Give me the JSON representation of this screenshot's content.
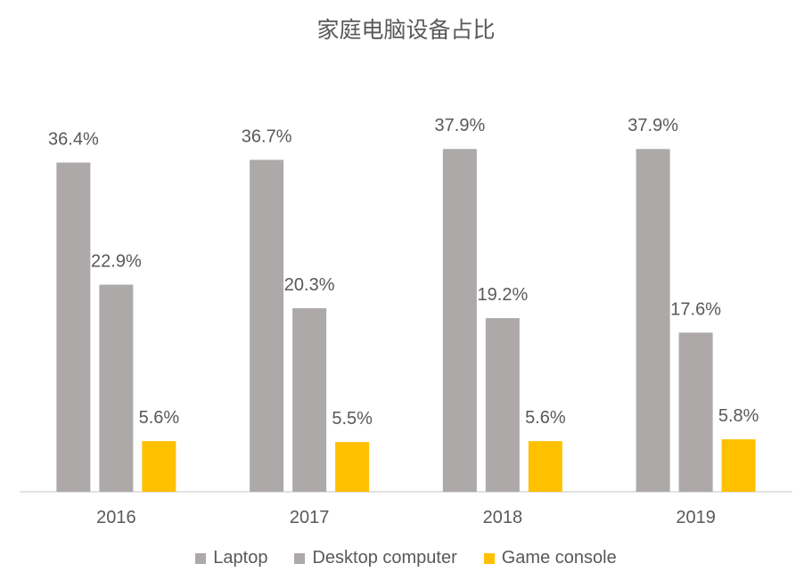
{
  "chart_data": {
    "type": "bar",
    "title": "家庭电脑设备占比",
    "xlabel": "",
    "ylabel": "",
    "categories": [
      "2016",
      "2017",
      "2018",
      "2019"
    ],
    "series": [
      {
        "name": "Laptop",
        "values": [
          36.4,
          36.7,
          37.9,
          37.9
        ],
        "labels": [
          "36.4%",
          "36.7%",
          "37.9%",
          "37.9%"
        ],
        "color": "#ADA9A9"
      },
      {
        "name": "Desktop computer",
        "values": [
          22.9,
          20.3,
          19.2,
          17.6
        ],
        "labels": [
          "22.9%",
          "20.3%",
          "19.2%",
          "17.6%"
        ],
        "color": "#ADA9A9"
      },
      {
        "name": "Game console",
        "values": [
          5.6,
          5.5,
          5.6,
          5.8
        ],
        "labels": [
          "5.6%",
          "5.5%",
          "5.6%",
          "5.8%"
        ],
        "color": "#FFC000"
      }
    ],
    "ylim": [
      0,
      40
    ],
    "grid": false,
    "legend_position": "bottom",
    "colors": {
      "text": "#595959",
      "axis": "#D9D9D9"
    }
  }
}
